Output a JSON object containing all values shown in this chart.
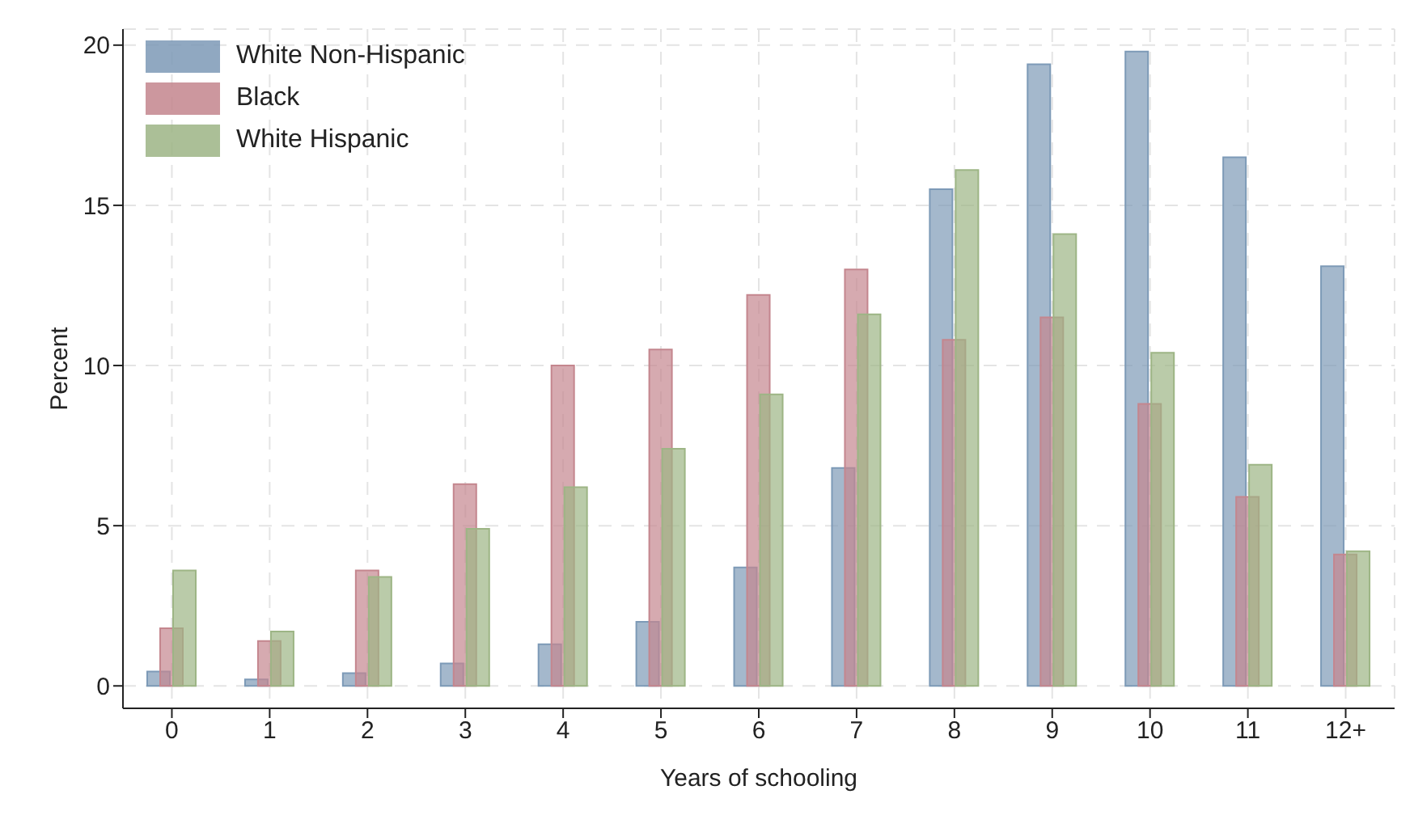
{
  "chart_data": {
    "type": "bar",
    "xlabel": "Years of schooling",
    "ylabel": "Percent",
    "categories": [
      "0",
      "1",
      "2",
      "3",
      "4",
      "5",
      "6",
      "7",
      "8",
      "9",
      "10",
      "11",
      "12+"
    ],
    "series": [
      {
        "name": "White Non-Hispanic",
        "color": "#7d9ab7",
        "values": [
          0.45,
          0.2,
          0.4,
          0.7,
          1.3,
          2.0,
          3.7,
          6.8,
          15.5,
          19.4,
          19.8,
          16.5,
          13.1
        ]
      },
      {
        "name": "Black",
        "color": "#c4868e",
        "values": [
          1.8,
          1.4,
          3.6,
          6.3,
          10.0,
          10.5,
          12.2,
          13.0,
          10.8,
          11.5,
          8.8,
          5.9,
          4.1
        ]
      },
      {
        "name": "White Hispanic",
        "color": "#9db585",
        "values": [
          3.6,
          1.7,
          3.4,
          4.9,
          6.2,
          7.4,
          9.1,
          11.6,
          16.1,
          14.1,
          10.4,
          6.9,
          4.2
        ]
      }
    ],
    "ylim": [
      -0.7,
      20.5
    ],
    "yticks": [
      0,
      5,
      10,
      15,
      20
    ],
    "grid": true,
    "legend": "top left"
  }
}
